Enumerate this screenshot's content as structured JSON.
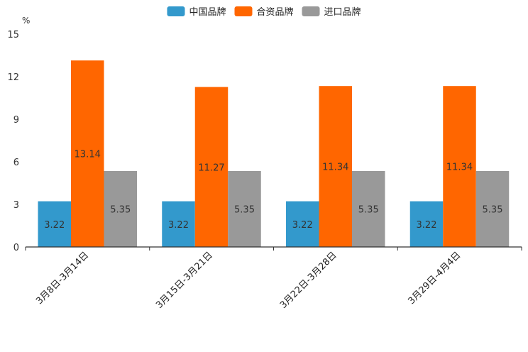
{
  "chart_data": {
    "type": "bar",
    "unit": "%",
    "categories": [
      "3月8日-3月14日",
      "3月15日-3月21日",
      "3月22日-3月28日",
      "3月29日-4月4日"
    ],
    "series": [
      {
        "name": "中国品牌",
        "color": "#3399cc",
        "values": [
          3.22,
          3.22,
          3.22,
          3.22
        ]
      },
      {
        "name": "合资品牌",
        "color": "#ff6600",
        "values": [
          13.14,
          11.27,
          11.34,
          11.34
        ]
      },
      {
        "name": "进口品牌",
        "color": "#999999",
        "values": [
          5.35,
          5.35,
          5.35,
          5.35
        ]
      }
    ],
    "yticks": [
      0,
      3,
      6,
      9,
      12,
      15
    ],
    "ylim": [
      0,
      15
    ],
    "legend_position": "top-center",
    "grid": false
  }
}
